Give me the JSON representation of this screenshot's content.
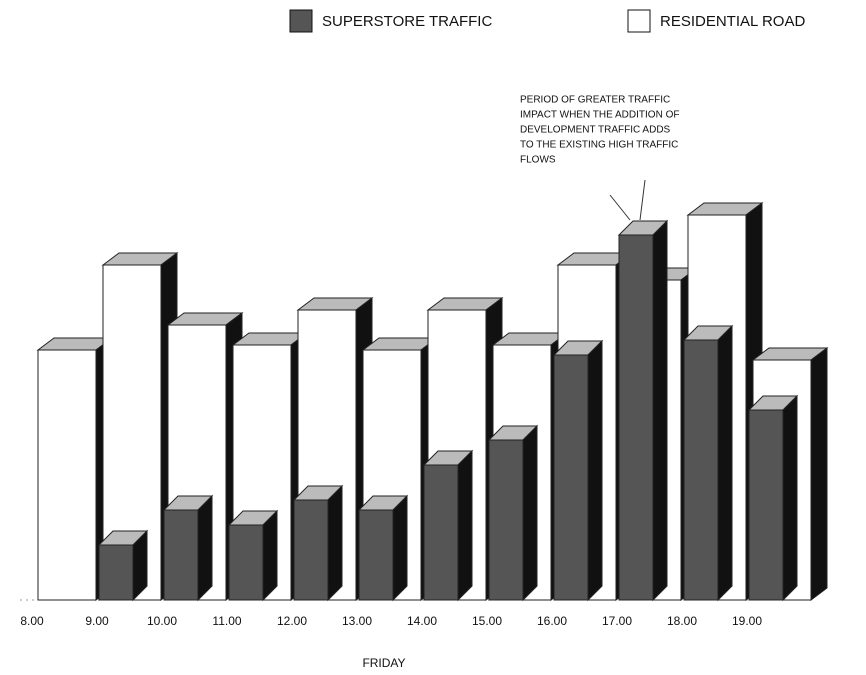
{
  "chart_data": {
    "type": "bar3d",
    "x_label": "FRIDAY",
    "annotation": [
      "PERIOD OF GREATER TRAFFIC",
      "IMPACT WHEN THE ADDITION OF",
      "DEVELOPMENT TRAFFIC ADDS",
      "TO THE EXISTING HIGH TRAFFIC",
      "FLOWS"
    ],
    "categories": [
      "8.00",
      "9.00",
      "10.00",
      "11.00",
      "12.00",
      "13.00",
      "14.00",
      "15.00",
      "16.00",
      "17.00",
      "18.00",
      "19.00"
    ],
    "ylim": [
      0,
      400
    ],
    "series": [
      {
        "name": "SUPERSTORE TRAFFIC",
        "color": "#555555",
        "values": [
          null,
          55,
          90,
          75,
          100,
          90,
          135,
          160,
          245,
          365,
          260,
          190
        ]
      },
      {
        "name": "RESIDENTIAL ROAD",
        "color": "#ffffff",
        "values": [
          250,
          335,
          275,
          255,
          290,
          250,
          290,
          255,
          335,
          320,
          385,
          240
        ]
      }
    ]
  }
}
